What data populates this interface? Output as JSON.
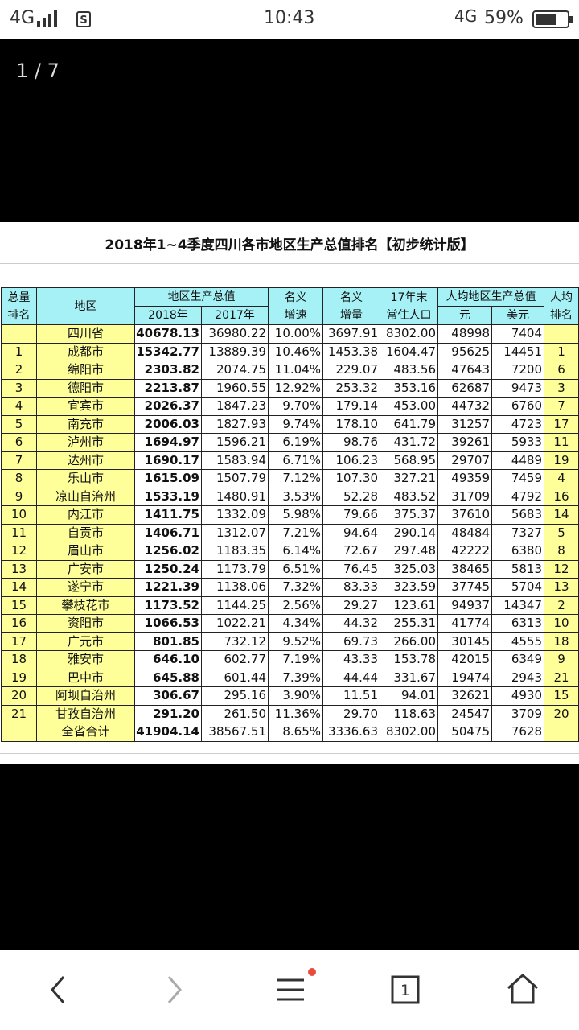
{
  "status": {
    "network": "4G",
    "time": "10:43",
    "network_right": "4G",
    "battery": "59%"
  },
  "viewer": {
    "counter": "1 / 7"
  },
  "table": {
    "title": "2018年1~4季度四川各市地区生产总值排名【初步统计版】",
    "header": {
      "rank": [
        "总量",
        "排名"
      ],
      "region": "地区",
      "gdp": "地区生产总值",
      "gdp_years": [
        "2018年",
        "2017年"
      ],
      "growth": [
        "名义",
        "增速"
      ],
      "increase": [
        "名义",
        "增量"
      ],
      "population": [
        "17年末",
        "常住人口"
      ],
      "per_capita": "人均地区生产总值",
      "per_capita_units": [
        "元",
        "美元"
      ],
      "per_capita_rank": [
        "人均",
        "排名"
      ]
    },
    "rows": [
      [
        null,
        "四川省",
        "40678.13",
        "36980.22",
        "10.00%",
        "3697.91",
        "8302.00",
        "48998",
        "7404",
        null
      ],
      [
        "1",
        "成都市",
        "15342.77",
        "13889.39",
        "10.46%",
        "1453.38",
        "1604.47",
        "95625",
        "14451",
        "1"
      ],
      [
        "2",
        "绵阳市",
        "2303.82",
        "2074.75",
        "11.04%",
        "229.07",
        "483.56",
        "47643",
        "7200",
        "6"
      ],
      [
        "3",
        "德阳市",
        "2213.87",
        "1960.55",
        "12.92%",
        "253.32",
        "353.16",
        "62687",
        "9473",
        "3"
      ],
      [
        "4",
        "宜宾市",
        "2026.37",
        "1847.23",
        "9.70%",
        "179.14",
        "453.00",
        "44732",
        "6760",
        "7"
      ],
      [
        "5",
        "南充市",
        "2006.03",
        "1827.93",
        "9.74%",
        "178.10",
        "641.79",
        "31257",
        "4723",
        "17"
      ],
      [
        "6",
        "泸州市",
        "1694.97",
        "1596.21",
        "6.19%",
        "98.76",
        "431.72",
        "39261",
        "5933",
        "11"
      ],
      [
        "7",
        "达州市",
        "1690.17",
        "1583.94",
        "6.71%",
        "106.23",
        "568.95",
        "29707",
        "4489",
        "19"
      ],
      [
        "8",
        "乐山市",
        "1615.09",
        "1507.79",
        "7.12%",
        "107.30",
        "327.21",
        "49359",
        "7459",
        "4"
      ],
      [
        "9",
        "凉山自治州",
        "1533.19",
        "1480.91",
        "3.53%",
        "52.28",
        "483.52",
        "31709",
        "4792",
        "16"
      ],
      [
        "10",
        "内江市",
        "1411.75",
        "1332.09",
        "5.98%",
        "79.66",
        "375.37",
        "37610",
        "5683",
        "14"
      ],
      [
        "11",
        "自贡市",
        "1406.71",
        "1312.07",
        "7.21%",
        "94.64",
        "290.14",
        "48484",
        "7327",
        "5"
      ],
      [
        "12",
        "眉山市",
        "1256.02",
        "1183.35",
        "6.14%",
        "72.67",
        "297.48",
        "42222",
        "6380",
        "8"
      ],
      [
        "13",
        "广安市",
        "1250.24",
        "1173.79",
        "6.51%",
        "76.45",
        "325.03",
        "38465",
        "5813",
        "12"
      ],
      [
        "14",
        "遂宁市",
        "1221.39",
        "1138.06",
        "7.32%",
        "83.33",
        "323.59",
        "37745",
        "5704",
        "13"
      ],
      [
        "15",
        "攀枝花市",
        "1173.52",
        "1144.25",
        "2.56%",
        "29.27",
        "123.61",
        "94937",
        "14347",
        "2"
      ],
      [
        "16",
        "资阳市",
        "1066.53",
        "1022.21",
        "4.34%",
        "44.32",
        "255.31",
        "41774",
        "6313",
        "10"
      ],
      [
        "17",
        "广元市",
        "801.85",
        "732.12",
        "9.52%",
        "69.73",
        "266.00",
        "30145",
        "4555",
        "18"
      ],
      [
        "18",
        "雅安市",
        "646.10",
        "602.77",
        "7.19%",
        "43.33",
        "153.78",
        "42015",
        "6349",
        "9"
      ],
      [
        "19",
        "巴中市",
        "645.88",
        "601.44",
        "7.39%",
        "44.44",
        "331.67",
        "19474",
        "2943",
        "21"
      ],
      [
        "20",
        "阿坝自治州",
        "306.67",
        "295.16",
        "3.90%",
        "11.51",
        "94.01",
        "32621",
        "4930",
        "15"
      ],
      [
        "21",
        "甘孜自治州",
        "291.20",
        "261.50",
        "11.36%",
        "29.70",
        "118.63",
        "24547",
        "3709",
        "20"
      ],
      [
        null,
        "全省合计",
        "41904.14",
        "38567.51",
        "8.65%",
        "3336.63",
        "8302.00",
        "50475",
        "7628",
        null
      ]
    ]
  },
  "nav": {
    "tab_count": "1"
  }
}
